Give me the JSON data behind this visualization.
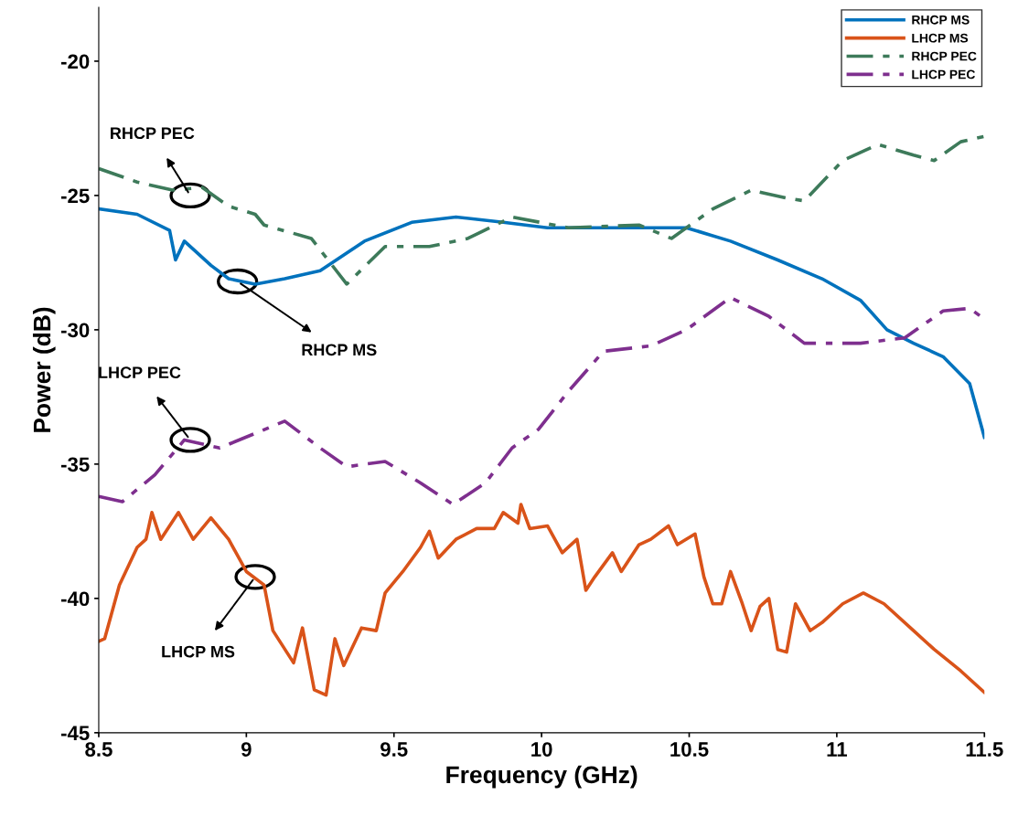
{
  "chart_data": {
    "type": "line",
    "xlabel": "Frequency (GHz)",
    "ylabel": "Power (dB)",
    "xlim": [
      8.5,
      11.5
    ],
    "xticks": [
      8.5,
      9,
      9.5,
      10,
      10.5,
      11,
      11.5
    ],
    "ylim": [
      -45,
      -18
    ],
    "yticks": [
      -45,
      -40,
      -35,
      -30,
      -25,
      -20
    ],
    "grid": false,
    "legend": "top right",
    "marker": "none",
    "series": [
      {
        "name": "RHCP MS",
        "color": "#0072bd",
        "line_style": "solid",
        "x": [
          8.5,
          8.63,
          8.74,
          8.76,
          8.79,
          8.88,
          8.94,
          9.03,
          9.13,
          9.25,
          9.4,
          9.56,
          9.71,
          9.87,
          10.02,
          10.18,
          10.33,
          10.49,
          10.64,
          10.8,
          10.95,
          11.08,
          11.17,
          11.26,
          11.36,
          11.45,
          11.5
        ],
        "values": [
          -25.5,
          -25.7,
          -26.3,
          -27.4,
          -26.7,
          -27.6,
          -28.1,
          -28.3,
          -28.1,
          -27.8,
          -26.7,
          -26.0,
          -25.8,
          -26.0,
          -26.2,
          -26.2,
          -26.2,
          -26.2,
          -26.7,
          -27.4,
          -28.1,
          -28.9,
          -30.0,
          -30.5,
          -31.0,
          -32.0,
          -34.0
        ]
      },
      {
        "name": "LHCP MS",
        "color": "#d95319",
        "line_style": "solid",
        "x": [
          8.5,
          8.52,
          8.57,
          8.63,
          8.66,
          8.68,
          8.71,
          8.77,
          8.82,
          8.88,
          8.94,
          9.0,
          9.06,
          9.09,
          9.16,
          9.19,
          9.23,
          9.27,
          9.3,
          9.33,
          9.39,
          9.44,
          9.47,
          9.53,
          9.59,
          9.62,
          9.65,
          9.71,
          9.78,
          9.84,
          9.87,
          9.92,
          9.93,
          9.96,
          10.02,
          10.07,
          10.12,
          10.15,
          10.18,
          10.24,
          10.27,
          10.33,
          10.37,
          10.43,
          10.46,
          10.52,
          10.55,
          10.58,
          10.61,
          10.64,
          10.68,
          10.71,
          10.74,
          10.77,
          10.8,
          10.83,
          10.86,
          10.91,
          10.95,
          11.02,
          11.09,
          11.16,
          11.26,
          11.33,
          11.42,
          11.5
        ],
        "values": [
          -41.6,
          -41.5,
          -39.5,
          -38.1,
          -37.8,
          -36.8,
          -37.8,
          -36.8,
          -37.8,
          -37.0,
          -37.8,
          -39.0,
          -39.5,
          -41.2,
          -42.4,
          -41.1,
          -43.4,
          -43.6,
          -41.5,
          -42.5,
          -41.1,
          -41.2,
          -39.8,
          -39.0,
          -38.1,
          -37.5,
          -38.5,
          -37.8,
          -37.4,
          -37.4,
          -36.8,
          -37.2,
          -36.5,
          -37.4,
          -37.3,
          -38.3,
          -37.8,
          -39.7,
          -39.2,
          -38.3,
          -39.0,
          -38.0,
          -37.8,
          -37.3,
          -38.0,
          -37.6,
          -39.2,
          -40.2,
          -40.2,
          -39.0,
          -40.2,
          -41.2,
          -40.3,
          -40.0,
          -41.9,
          -42.0,
          -40.2,
          -41.2,
          -40.9,
          -40.2,
          -39.8,
          -40.2,
          -41.2,
          -41.9,
          -42.7,
          -43.5
        ]
      },
      {
        "name": "RHCP PEC",
        "color": "#3d7a5a",
        "line_style": "dashdot",
        "x": [
          8.5,
          8.63,
          8.75,
          8.85,
          8.94,
          9.03,
          9.06,
          9.22,
          9.34,
          9.47,
          9.62,
          9.75,
          9.9,
          10.09,
          10.33,
          10.44,
          10.58,
          10.71,
          10.83,
          10.89,
          11.02,
          11.14,
          11.26,
          11.33,
          11.42,
          11.5
        ],
        "values": [
          -24.0,
          -24.5,
          -24.8,
          -24.7,
          -25.4,
          -25.7,
          -26.1,
          -26.6,
          -28.3,
          -26.9,
          -26.9,
          -26.6,
          -25.8,
          -26.2,
          -26.1,
          -26.6,
          -25.5,
          -24.8,
          -25.1,
          -25.2,
          -23.7,
          -23.1,
          -23.5,
          -23.7,
          -23.0,
          -22.8
        ]
      },
      {
        "name": "LHCP PEC",
        "color": "#7e2f8e",
        "line_style": "dashdot",
        "x": [
          8.5,
          8.58,
          8.69,
          8.79,
          8.91,
          9.13,
          9.25,
          9.34,
          9.47,
          9.59,
          9.7,
          9.81,
          9.9,
          9.99,
          10.09,
          10.21,
          10.37,
          10.49,
          10.64,
          10.77,
          10.89,
          11.08,
          11.23,
          11.36,
          11.45,
          11.5
        ],
        "values": [
          -36.2,
          -36.4,
          -35.4,
          -34.1,
          -34.4,
          -33.4,
          -34.4,
          -35.1,
          -34.9,
          -35.7,
          -36.5,
          -35.7,
          -34.4,
          -33.7,
          -32.3,
          -30.8,
          -30.6,
          -30.0,
          -28.8,
          -29.5,
          -30.5,
          -30.5,
          -30.3,
          -29.3,
          -29.2,
          -29.6
        ]
      }
    ],
    "annotations": [
      {
        "text": "RHCP PEC",
        "x": 8.81,
        "y": -25.0
      },
      {
        "text": "RHCP MS",
        "x": 8.97,
        "y": -28.2
      },
      {
        "text": "LHCP PEC",
        "x": 8.81,
        "y": -34.1
      },
      {
        "text": "LHCP MS",
        "x": 9.03,
        "y": -39.2
      }
    ]
  }
}
